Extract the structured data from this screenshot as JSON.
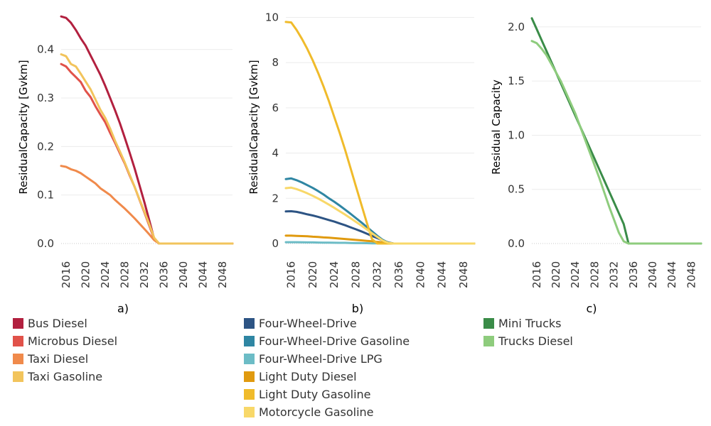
{
  "chart_data": [
    {
      "type": "line",
      "panel_label": "a)",
      "ylabel": "ResidualCapacity [Gvkm]",
      "xlim": [
        2015,
        2050
      ],
      "ylim": [
        0,
        0.48
      ],
      "xticks": [
        2016,
        2020,
        2024,
        2028,
        2032,
        2036,
        2040,
        2044,
        2048
      ],
      "yticks": [
        0.0,
        0.1,
        0.2,
        0.3,
        0.4
      ],
      "ytick_labels": [
        "0.0",
        "0.1",
        "0.2",
        "0.3",
        "0.4"
      ],
      "grid": true,
      "x": [
        2015,
        2016,
        2017,
        2018,
        2019,
        2020,
        2021,
        2022,
        2023,
        2024,
        2025,
        2026,
        2027,
        2028,
        2029,
        2030,
        2031,
        2032,
        2033,
        2034,
        2035,
        2036,
        2037,
        2038,
        2039,
        2040,
        2041,
        2042,
        2043,
        2044,
        2045,
        2046,
        2047,
        2048,
        2049,
        2050
      ],
      "series": [
        {
          "name": "Bus Diesel",
          "color": "#b2203f",
          "values": [
            0.468,
            0.465,
            0.455,
            0.44,
            0.423,
            0.408,
            0.388,
            0.368,
            0.348,
            0.325,
            0.3,
            0.275,
            0.248,
            0.218,
            0.187,
            0.155,
            0.12,
            0.085,
            0.048,
            0.01,
            0,
            0,
            0,
            0,
            0,
            0,
            0,
            0,
            0,
            0,
            0,
            0,
            0,
            0,
            0,
            0
          ]
        },
        {
          "name": "Microbus Diesel",
          "color": "#e1524a",
          "values": [
            0.37,
            0.365,
            0.353,
            0.343,
            0.333,
            0.315,
            0.302,
            0.283,
            0.266,
            0.25,
            0.228,
            0.208,
            0.186,
            0.165,
            0.14,
            0.117,
            0.09,
            0.064,
            0.037,
            0.01,
            0,
            0,
            0,
            0,
            0,
            0,
            0,
            0,
            0,
            0,
            0,
            0,
            0,
            0,
            0,
            0
          ]
        },
        {
          "name": "Taxi Diesel",
          "color": "#f08a4b",
          "values": [
            0.16,
            0.158,
            0.153,
            0.15,
            0.145,
            0.138,
            0.131,
            0.124,
            0.114,
            0.107,
            0.1,
            0.09,
            0.081,
            0.072,
            0.062,
            0.052,
            0.041,
            0.03,
            0.019,
            0.007,
            0,
            0,
            0,
            0,
            0,
            0,
            0,
            0,
            0,
            0,
            0,
            0,
            0,
            0,
            0,
            0
          ]
        },
        {
          "name": "Taxi Gasoline",
          "color": "#f2c45c",
          "values": [
            0.39,
            0.386,
            0.37,
            0.365,
            0.35,
            0.334,
            0.318,
            0.297,
            0.276,
            0.259,
            0.237,
            0.212,
            0.19,
            0.167,
            0.142,
            0.117,
            0.091,
            0.066,
            0.04,
            0.012,
            0,
            0,
            0,
            0,
            0,
            0,
            0,
            0,
            0,
            0,
            0,
            0,
            0,
            0,
            0,
            0
          ]
        }
      ]
    },
    {
      "type": "line",
      "panel_label": "b)",
      "ylabel": "ResidualCapacity [Gvkm]",
      "xlim": [
        2015,
        2050
      ],
      "ylim": [
        0,
        10.3
      ],
      "xticks": [
        2016,
        2020,
        2024,
        2028,
        2032,
        2036,
        2040,
        2044,
        2048
      ],
      "yticks": [
        0,
        2,
        4,
        6,
        8,
        10
      ],
      "ytick_labels": [
        "0",
        "2",
        "4",
        "6",
        "8",
        "10"
      ],
      "grid": true,
      "x": [
        2015,
        2016,
        2017,
        2018,
        2019,
        2020,
        2021,
        2022,
        2023,
        2024,
        2025,
        2026,
        2027,
        2028,
        2029,
        2030,
        2031,
        2032,
        2033,
        2034,
        2035,
        2036,
        2037,
        2038,
        2039,
        2040,
        2041,
        2042,
        2043,
        2044,
        2045,
        2046,
        2047,
        2048,
        2049,
        2050
      ],
      "series": [
        {
          "name": "Four-Wheel-Drive",
          "color": "#2d5484",
          "values": [
            1.42,
            1.43,
            1.4,
            1.35,
            1.29,
            1.24,
            1.18,
            1.11,
            1.04,
            0.97,
            0.89,
            0.81,
            0.72,
            0.63,
            0.54,
            0.44,
            0.34,
            0.24,
            0.14,
            0.05,
            0,
            0,
            0,
            0,
            0,
            0,
            0,
            0,
            0,
            0,
            0,
            0,
            0,
            0,
            0,
            0
          ]
        },
        {
          "name": "Four-Wheel-Drive Gasoline",
          "color": "#2f86a3",
          "values": [
            2.85,
            2.88,
            2.8,
            2.7,
            2.58,
            2.46,
            2.32,
            2.17,
            2.0,
            1.85,
            1.68,
            1.5,
            1.32,
            1.13,
            0.94,
            0.74,
            0.54,
            0.34,
            0.16,
            0.04,
            0,
            0,
            0,
            0,
            0,
            0,
            0,
            0,
            0,
            0,
            0,
            0,
            0,
            0,
            0,
            0
          ]
        },
        {
          "name": "Four-Wheel-Drive LPG",
          "color": "#6cbcc6",
          "values": [
            0.06,
            0.06,
            0.06,
            0.055,
            0.05,
            0.05,
            0.045,
            0.04,
            0.04,
            0.035,
            0.03,
            0.03,
            0.025,
            0.02,
            0.02,
            0.015,
            0.01,
            0.008,
            0.005,
            0.002,
            0,
            0,
            0,
            0,
            0,
            0,
            0,
            0,
            0,
            0,
            0,
            0,
            0,
            0,
            0,
            0
          ]
        },
        {
          "name": "Light Duty Diesel",
          "color": "#e09a0f",
          "values": [
            0.35,
            0.35,
            0.34,
            0.33,
            0.32,
            0.3,
            0.29,
            0.27,
            0.26,
            0.24,
            0.22,
            0.2,
            0.18,
            0.16,
            0.14,
            0.12,
            0.1,
            0.07,
            0.05,
            0.02,
            0,
            0,
            0,
            0,
            0,
            0,
            0,
            0,
            0,
            0,
            0,
            0,
            0,
            0,
            0,
            0
          ]
        },
        {
          "name": "Light Duty Gasoline",
          "color": "#f0bb2b",
          "values": [
            9.8,
            9.78,
            9.45,
            9.05,
            8.6,
            8.1,
            7.55,
            6.95,
            6.3,
            5.6,
            4.9,
            4.15,
            3.35,
            2.55,
            1.75,
            0.95,
            0.2,
            0,
            0,
            0,
            0,
            0,
            0,
            0,
            0,
            0,
            0,
            0,
            0,
            0,
            0,
            0,
            0,
            0,
            0,
            0
          ]
        },
        {
          "name": "Motorcycle Gasoline",
          "color": "#f8d869",
          "values": [
            2.45,
            2.47,
            2.41,
            2.32,
            2.22,
            2.11,
            1.99,
            1.86,
            1.72,
            1.58,
            1.43,
            1.28,
            1.12,
            0.96,
            0.8,
            0.63,
            0.46,
            0.29,
            0.13,
            0.03,
            0,
            0,
            0,
            0,
            0,
            0,
            0,
            0,
            0,
            0,
            0,
            0,
            0,
            0,
            0,
            0
          ]
        }
      ]
    },
    {
      "type": "line",
      "panel_label": "c)",
      "ylabel": "Residual Capacity",
      "xlim": [
        2015,
        2050
      ],
      "ylim": [
        0,
        2.15
      ],
      "xticks": [
        2016,
        2020,
        2024,
        2028,
        2032,
        2036,
        2040,
        2044,
        2048
      ],
      "yticks": [
        0.0,
        0.5,
        1.0,
        1.5,
        2.0
      ],
      "ytick_labels": [
        "0.0",
        "0.5",
        "1.0",
        "1.5",
        "2.0"
      ],
      "grid": true,
      "x": [
        2015,
        2016,
        2017,
        2018,
        2019,
        2020,
        2021,
        2022,
        2023,
        2024,
        2025,
        2026,
        2027,
        2028,
        2029,
        2030,
        2031,
        2032,
        2033,
        2034,
        2035,
        2036,
        2037,
        2038,
        2039,
        2040,
        2041,
        2042,
        2043,
        2044,
        2045,
        2046,
        2047,
        2048,
        2049,
        2050
      ],
      "series": [
        {
          "name": "Mini Trucks",
          "color": "#3a8c48",
          "values": [
            2.08,
            1.98,
            1.88,
            1.78,
            1.68,
            1.58,
            1.48,
            1.38,
            1.28,
            1.18,
            1.08,
            0.98,
            0.88,
            0.78,
            0.68,
            0.58,
            0.48,
            0.38,
            0.28,
            0.18,
            0,
            0,
            0,
            0,
            0,
            0,
            0,
            0,
            0,
            0,
            0,
            0,
            0,
            0,
            0,
            0
          ]
        },
        {
          "name": "Trucks Diesel",
          "color": "#8ecc7d",
          "values": [
            1.87,
            1.85,
            1.8,
            1.74,
            1.66,
            1.58,
            1.5,
            1.4,
            1.3,
            1.2,
            1.08,
            0.96,
            0.84,
            0.72,
            0.6,
            0.47,
            0.34,
            0.22,
            0.1,
            0.02,
            0,
            0,
            0,
            0,
            0,
            0,
            0,
            0,
            0,
            0,
            0,
            0,
            0,
            0,
            0,
            0
          ]
        }
      ]
    }
  ],
  "legends": [
    {
      "items": [
        {
          "name": "Bus Diesel",
          "color": "#b2203f"
        },
        {
          "name": "Microbus Diesel",
          "color": "#e1524a"
        },
        {
          "name": "Taxi Diesel",
          "color": "#f08a4b"
        },
        {
          "name": "Taxi Gasoline",
          "color": "#f2c45c"
        }
      ]
    },
    {
      "items": [
        {
          "name": "Four-Wheel-Drive",
          "color": "#2d5484"
        },
        {
          "name": "Four-Wheel-Drive Gasoline",
          "color": "#2f86a3"
        },
        {
          "name": "Four-Wheel-Drive LPG",
          "color": "#6cbcc6"
        },
        {
          "name": "Light Duty Diesel",
          "color": "#e09a0f"
        },
        {
          "name": "Light Duty Gasoline",
          "color": "#f0bb2b"
        },
        {
          "name": "Motorcycle Gasoline",
          "color": "#f8d869"
        }
      ]
    },
    {
      "items": [
        {
          "name": "Mini Trucks",
          "color": "#3a8c48"
        },
        {
          "name": "Trucks Diesel",
          "color": "#8ecc7d"
        }
      ]
    }
  ]
}
